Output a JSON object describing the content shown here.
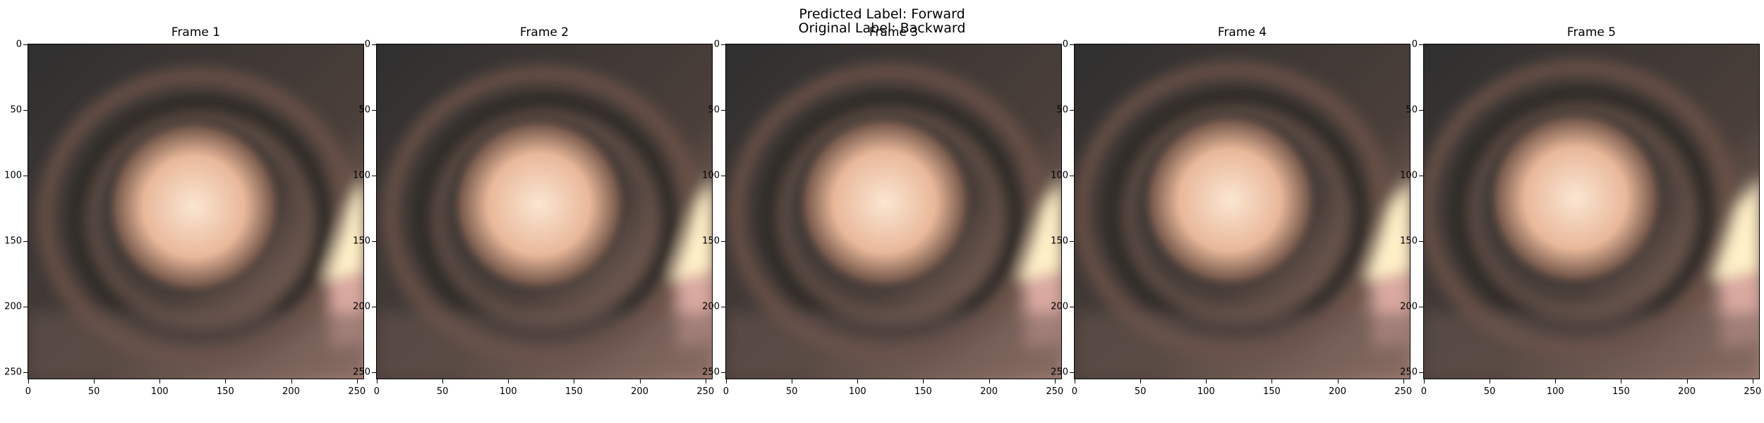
{
  "suptitle": {
    "predicted": "Predicted Label: Forward",
    "original": "Original Label: Backward"
  },
  "frames": [
    {
      "title": "Frame 1",
      "highlight_offset": 0.0
    },
    {
      "title": "Frame 2",
      "highlight_offset": 0.25
    },
    {
      "title": "Frame 3",
      "highlight_offset": 0.5
    },
    {
      "title": "Frame 4",
      "highlight_offset": 0.75
    },
    {
      "title": "Frame 5",
      "highlight_offset": 1.0
    }
  ],
  "x_ticks": [
    "0",
    "50",
    "100",
    "150",
    "200",
    "250"
  ],
  "y_ticks": [
    "0",
    "50",
    "100",
    "150",
    "200",
    "250"
  ],
  "colors": {
    "dark": "#3a3634",
    "ring": "#4a3c36",
    "glow": "#fbe6d2",
    "light_patch": "#fff0c8",
    "pink_patch": "#d9a9a0"
  }
}
